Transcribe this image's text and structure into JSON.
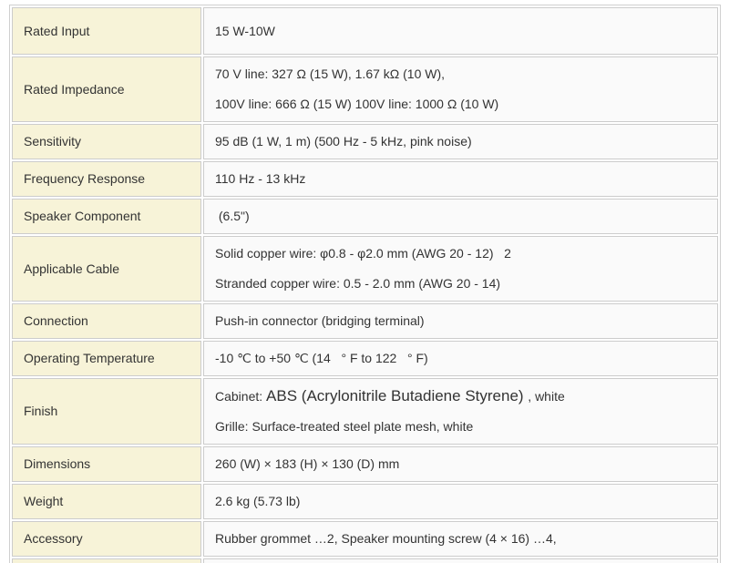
{
  "colors": {
    "label_background": "#f7f3d8",
    "value_background": "#fafafa",
    "border": "#cccccc",
    "text": "#333333"
  },
  "table": {
    "rows": [
      {
        "label": "Rated Input",
        "lines": [
          "15 W-10W"
        ]
      },
      {
        "label": "Rated Impedance",
        "lines": [
          "70 V line: 327 Ω (15 W), 1.67 kΩ (10 W),",
          "100V line: 666 Ω (15 W) 100V line: 1000 Ω (10 W)"
        ]
      },
      {
        "label": "Sensitivity",
        "lines": [
          "95 dB (1 W, 1 m) (500 Hz - 5 kHz, pink noise)"
        ]
      },
      {
        "label": "Frequency Response",
        "lines": [
          "110 Hz - 13 kHz"
        ]
      },
      {
        "label": "Speaker Component",
        "lines": [
          " (6.5\")"
        ]
      },
      {
        "label": "Applicable Cable",
        "lines": [
          "Solid copper wire: φ0.8 - φ2.0 mm (AWG 20 - 12)   2",
          "Stranded copper wire: 0.5 - 2.0 mm (AWG 20 - 14)"
        ]
      },
      {
        "label": "Connection",
        "lines": [
          "Push-in connector (bridging terminal)"
        ]
      },
      {
        "label": "Operating Temperature",
        "lines": [
          "-10 ℃ to +50 ℃ (14   ° F to 122   ° F)"
        ]
      },
      {
        "label": "Finish",
        "lines": [
          {
            "segments": [
              {
                "t": "Cabinet: "
              },
              {
                "t": "ABS (Acrylonitrile Butadiene Styrene) ",
                "large": true
              },
              {
                "t": ", white"
              }
            ]
          },
          "Grille: Surface-treated steel plate mesh, white"
        ]
      },
      {
        "label": "Dimensions",
        "lines": [
          "260 (W) × 183 (H) × 130 (D) mm"
        ]
      },
      {
        "label": "Weight",
        "lines": [
          "2.6 kg (5.73 lb)"
        ]
      },
      {
        "label": "Accessory",
        "lines": [
          "Rubber grommet …2, Speaker mounting screw (4 × 16) …4,"
        ]
      },
      {
        "label": "",
        "lines": [
          ""
        ]
      }
    ]
  }
}
